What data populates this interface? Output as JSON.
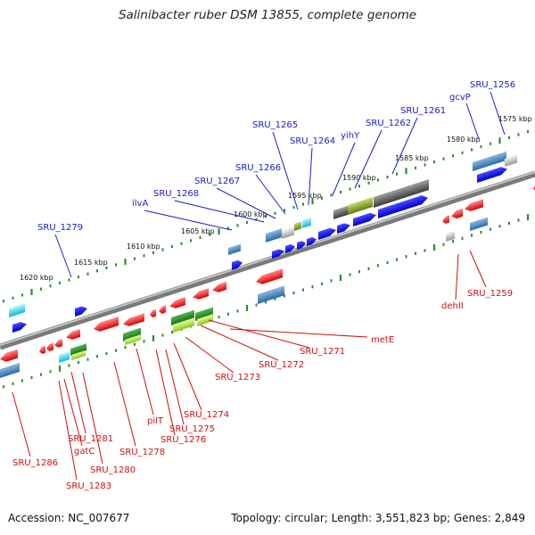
{
  "title": "Salinibacter ruber DSM 13855, complete genome",
  "footer": {
    "accession": "Accession: NC_007677",
    "summary": "Topology: circular; Length: 3,551,823 bp; Genes: 2,849"
  },
  "colors": {
    "forward_labels": "#1a1acc",
    "reverse_labels": "#cc1111",
    "backbone": "#808080",
    "ticks": "#2e8b2e",
    "forward_cds": "#0000ee",
    "reverse_cds": "#ee0000"
  },
  "position_scale": {
    "labels": [
      {
        "text": "1575 kbp",
        "kbp": 1575
      },
      {
        "text": "1580 kbp",
        "kbp": 1580
      },
      {
        "text": "1585 kbp",
        "kbp": 1585
      },
      {
        "text": "1590 kbp",
        "kbp": 1590
      },
      {
        "text": "1595 kbp",
        "kbp": 1595
      },
      {
        "text": "1600 kbp",
        "kbp": 1600
      },
      {
        "text": "1605 kbp",
        "kbp": 1605
      },
      {
        "text": "1610 kbp",
        "kbp": 1610
      },
      {
        "text": "1615 kbp",
        "kbp": 1615
      },
      {
        "text": "1620 kbp",
        "kbp": 1620
      }
    ]
  },
  "forward_genes": [
    {
      "name": "SRU_1256"
    },
    {
      "name": "gcvP"
    },
    {
      "name": "SRU_1261"
    },
    {
      "name": "SRU_1262"
    },
    {
      "name": "yihY"
    },
    {
      "name": "SRU_1264"
    },
    {
      "name": "SRU_1265"
    },
    {
      "name": "SRU_1266"
    },
    {
      "name": "SRU_1267"
    },
    {
      "name": "SRU_1268"
    },
    {
      "name": "ilvA"
    },
    {
      "name": "SRU_1279"
    }
  ],
  "reverse_genes": [
    {
      "name": "SRU_1259"
    },
    {
      "name": "dehII"
    },
    {
      "name": "metE"
    },
    {
      "name": "SRU_1271"
    },
    {
      "name": "SRU_1272"
    },
    {
      "name": "SRU_1273"
    },
    {
      "name": "SRU_1274"
    },
    {
      "name": "SRU_1275"
    },
    {
      "name": "SRU_1276"
    },
    {
      "name": "pilT"
    },
    {
      "name": "SRU_1278"
    },
    {
      "name": "SRU_1280"
    },
    {
      "name": "SRU_1281"
    },
    {
      "name": "gatC"
    },
    {
      "name": "SRU_1283"
    },
    {
      "name": "SRU_1286"
    }
  ]
}
